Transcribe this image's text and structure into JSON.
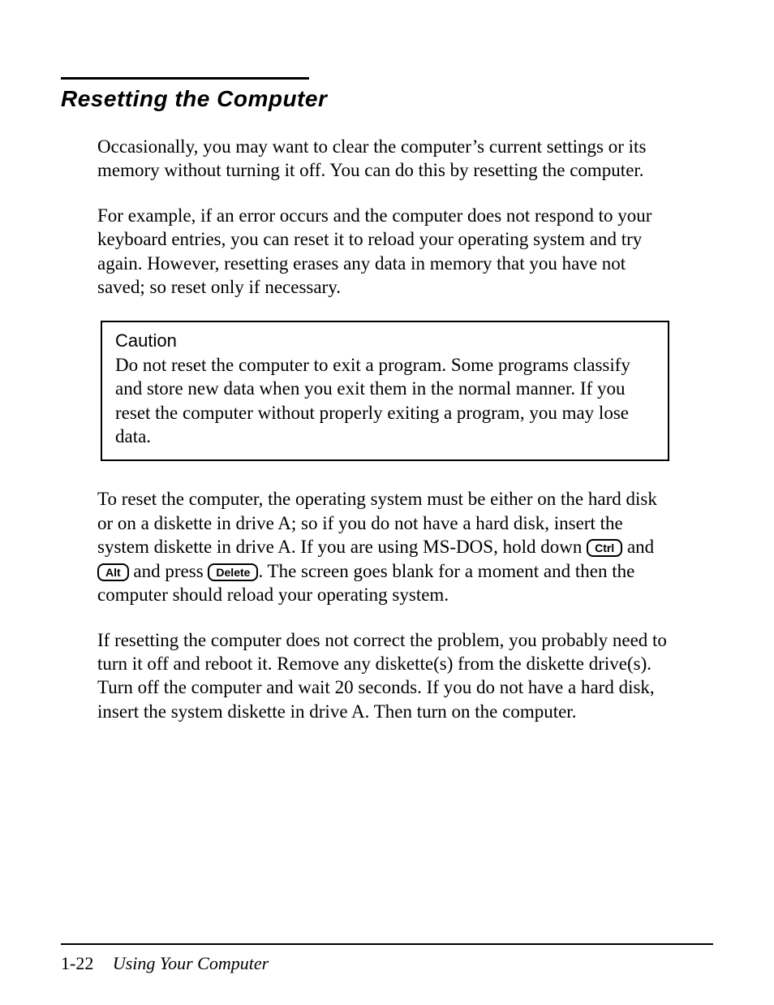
{
  "heading": "Resetting the Computer",
  "para1": "Occasionally, you may want to clear the computer’s current settings or its memory without turning it off. You can do this by resetting the computer.",
  "para2": "For example, if an error occurs and the computer does not respond to your keyboard entries, you can reset it to reload your operating system and try again. However, resetting erases any data in memory that you have not saved; so reset only if necessary.",
  "caution": {
    "title": "Caution",
    "text": "Do not reset the computer to exit a program. Some programs classify and store new data when you exit them in the normal manner. If you reset the computer without properly exiting a program, you may lose data."
  },
  "para3": {
    "pre_keys": "To reset the computer, the operating system must be either on the hard disk or on a diskette in drive A; so if you do not have a hard disk, insert the system diskette in drive A. If you are using MS-DOS, hold down ",
    "key1": "Ctrl",
    "mid1": " and ",
    "key2": "Alt",
    "mid2": "  and press  ",
    "key3": "Delete",
    "post_keys": ". The screen goes blank for a moment and then the computer should reload your operating system."
  },
  "para4": "If resetting the computer does not correct the problem, you probably need to turn it off and reboot it. Remove any diskette(s) from the diskette drive(s). Turn off the computer and wait 20 seconds. If you do not have a hard disk, insert the system diskette in drive A. Then turn on the computer.",
  "footer": {
    "page_number": "1-22",
    "title": "Using Your Computer"
  }
}
